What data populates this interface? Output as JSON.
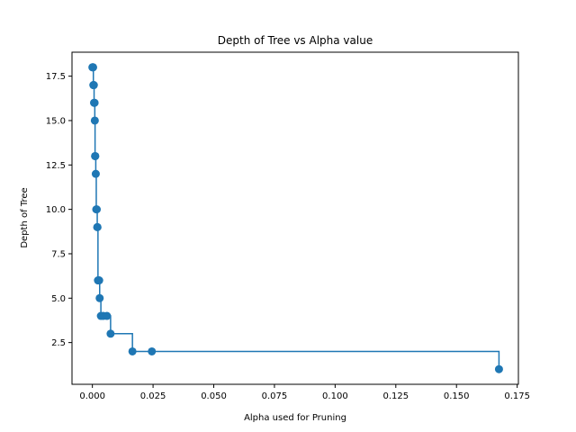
{
  "chart_data": {
    "type": "line",
    "title": "Depth of Tree vs Alpha value",
    "xlabel": "Alpha used for Pruning",
    "ylabel": "Depth of Tree",
    "xlim": [
      -0.0084,
      0.1755
    ],
    "ylim": [
      0.15,
      18.85
    ],
    "xticks": [
      0.0,
      0.025,
      0.05,
      0.075,
      0.1,
      0.125,
      0.15,
      0.175
    ],
    "xtick_labels": [
      "0.000",
      "0.025",
      "0.050",
      "0.075",
      "0.100",
      "0.125",
      "0.150",
      "0.175"
    ],
    "yticks": [
      2.5,
      5.0,
      7.5,
      10.0,
      12.5,
      15.0,
      17.5
    ],
    "ytick_labels": [
      "2.5",
      "5.0",
      "7.5",
      "10.0",
      "12.5",
      "15.0",
      "17.5"
    ],
    "drawstyle": "steps-post",
    "marker": "circle",
    "grid": false,
    "legend": "none",
    "colors": {
      "series": "#1f77b4",
      "axes": "#000000",
      "background": "#ffffff"
    },
    "series": [
      {
        "x": [
          0.0,
          0.0002,
          0.0003,
          0.0004,
          0.0005,
          0.0006,
          0.0007,
          0.0008,
          0.0009,
          0.001,
          0.0011,
          0.0012,
          0.0014,
          0.0016,
          0.0018,
          0.002,
          0.0021,
          0.0023,
          0.0025,
          0.0028,
          0.003,
          0.0035,
          0.0045,
          0.006,
          0.0075,
          0.0165,
          0.0245,
          0.1675
        ],
        "y": [
          18,
          18,
          18,
          17,
          17,
          17,
          16,
          16,
          16,
          15,
          13,
          13,
          12,
          10,
          10,
          9,
          9,
          6,
          6,
          6,
          5,
          4,
          4,
          4,
          3,
          2,
          2,
          1
        ]
      }
    ]
  }
}
